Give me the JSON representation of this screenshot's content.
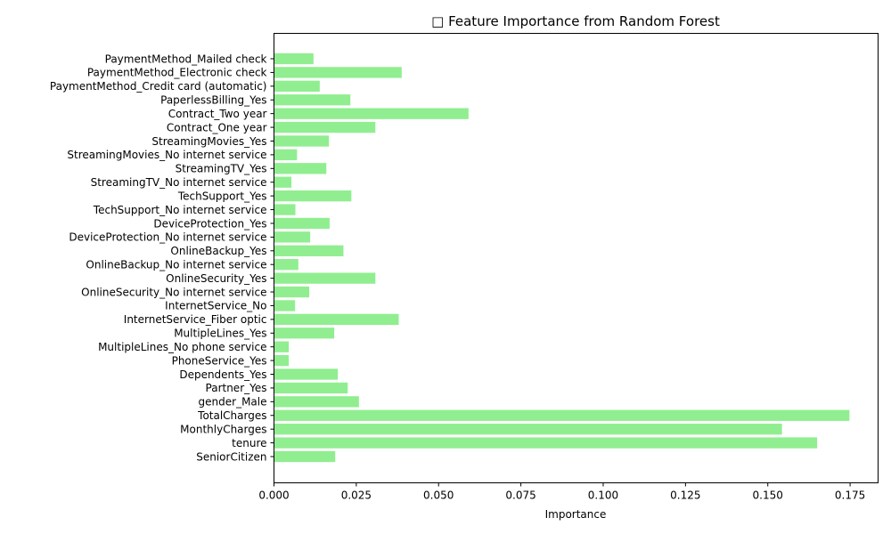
{
  "chart_data": {
    "type": "bar",
    "orientation": "horizontal",
    "title": "□ Feature Importance from Random Forest",
    "xlabel": "Importance",
    "ylabel": "",
    "xlim": [
      0,
      0.1835
    ],
    "xticks": [
      0.0,
      0.025,
      0.05,
      0.075,
      0.1,
      0.125,
      0.15,
      0.175
    ],
    "xtick_labels": [
      "0.000",
      "0.025",
      "0.050",
      "0.075",
      "0.100",
      "0.125",
      "0.150",
      "0.175"
    ],
    "bar_color": "#90ee90",
    "grid": false,
    "categories": [
      "SeniorCitizen",
      "tenure",
      "MonthlyCharges",
      "TotalCharges",
      "gender_Male",
      "Partner_Yes",
      "Dependents_Yes",
      "PhoneService_Yes",
      "MultipleLines_No phone service",
      "MultipleLines_Yes",
      "InternetService_Fiber optic",
      "InternetService_No",
      "OnlineSecurity_No internet service",
      "OnlineSecurity_Yes",
      "OnlineBackup_No internet service",
      "OnlineBackup_Yes",
      "DeviceProtection_No internet service",
      "DeviceProtection_Yes",
      "TechSupport_No internet service",
      "TechSupport_Yes",
      "StreamingTV_No internet service",
      "StreamingTV_Yes",
      "StreamingMovies_No internet service",
      "StreamingMovies_Yes",
      "Contract_One year",
      "Contract_Two year",
      "PaperlessBilling_Yes",
      "PaymentMethod_Credit card (automatic)",
      "PaymentMethod_Electronic check",
      "PaymentMethod_Mailed check"
    ],
    "values": [
      0.0186,
      0.165,
      0.1543,
      0.1748,
      0.0258,
      0.0224,
      0.0194,
      0.0045,
      0.0045,
      0.0183,
      0.0379,
      0.0064,
      0.0107,
      0.0308,
      0.0074,
      0.0211,
      0.011,
      0.0169,
      0.0065,
      0.0235,
      0.0053,
      0.0159,
      0.007,
      0.0167,
      0.0308,
      0.0591,
      0.0232,
      0.0139,
      0.0388,
      0.012
    ]
  }
}
